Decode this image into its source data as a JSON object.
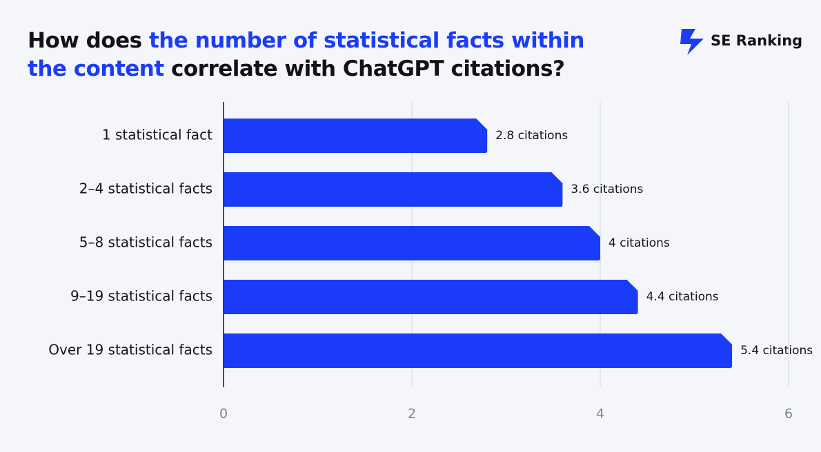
{
  "brand": "SE Ranking",
  "chart_data": {
    "type": "hbar",
    "title": [
      [
        {
          "text": "How does ",
          "color": "#12131a"
        },
        {
          "text": "the number of statistical facts within",
          "color": "#1c3df5"
        }
      ],
      [
        {
          "text": "the content",
          "color": "#1c3df5"
        },
        {
          "text": " correlate with ChatGPT citations?",
          "color": "#12131a"
        }
      ]
    ],
    "categories": [
      "1 statistical fact",
      "2–4 statistical facts",
      "5–8 statistical facts",
      "9–19 statistical facts",
      "Over 19 statistical facts"
    ],
    "values": [
      2.8,
      3.6,
      4,
      4.4,
      5.4
    ],
    "value_labels": [
      "2.8 citations",
      "3.6 citations",
      "4 citations",
      "4.4 citations",
      "5.4 citations"
    ],
    "color": "#1a3bf8",
    "xlim": [
      0,
      6
    ],
    "xticks": [
      0,
      2,
      4,
      6
    ],
    "grid": true
  }
}
